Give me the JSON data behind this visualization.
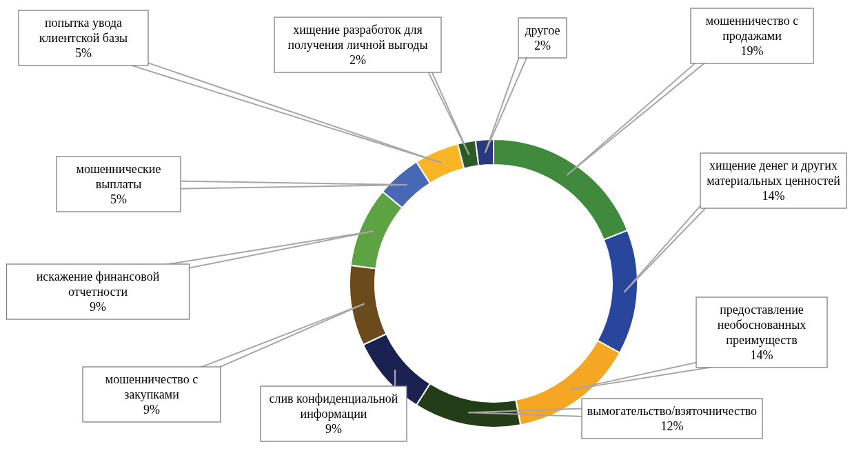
{
  "chart_data": {
    "type": "donut",
    "categories": [
      "мошенничество с продажами",
      "хищение денег и других материальных ценностей",
      "предоставление необоснованных преимуществ",
      "вымогательство/взяточничество",
      "слив конфиденциальной информации",
      "мошенничество с закупками",
      "искажение финансовой отчетности",
      "мошеннические выплаты",
      "попытка увода клиентской базы",
      "хищение разработок для получения личной выгоды",
      "другое"
    ],
    "values": [
      19,
      14,
      14,
      12,
      9,
      9,
      9,
      5,
      5,
      2,
      2
    ],
    "colors": [
      "#3f8a3c",
      "#28479c",
      "#f5a623",
      "#233d18",
      "#1a2251",
      "#6b4a1c",
      "#5da342",
      "#4769b5",
      "#f8b526",
      "#2d5a27",
      "#283a7c"
    ],
    "value_labels": [
      "19%",
      "14%",
      "14%",
      "12%",
      "9%",
      "9%",
      "9%",
      "5%",
      "5%",
      "2%",
      "2%"
    ]
  }
}
